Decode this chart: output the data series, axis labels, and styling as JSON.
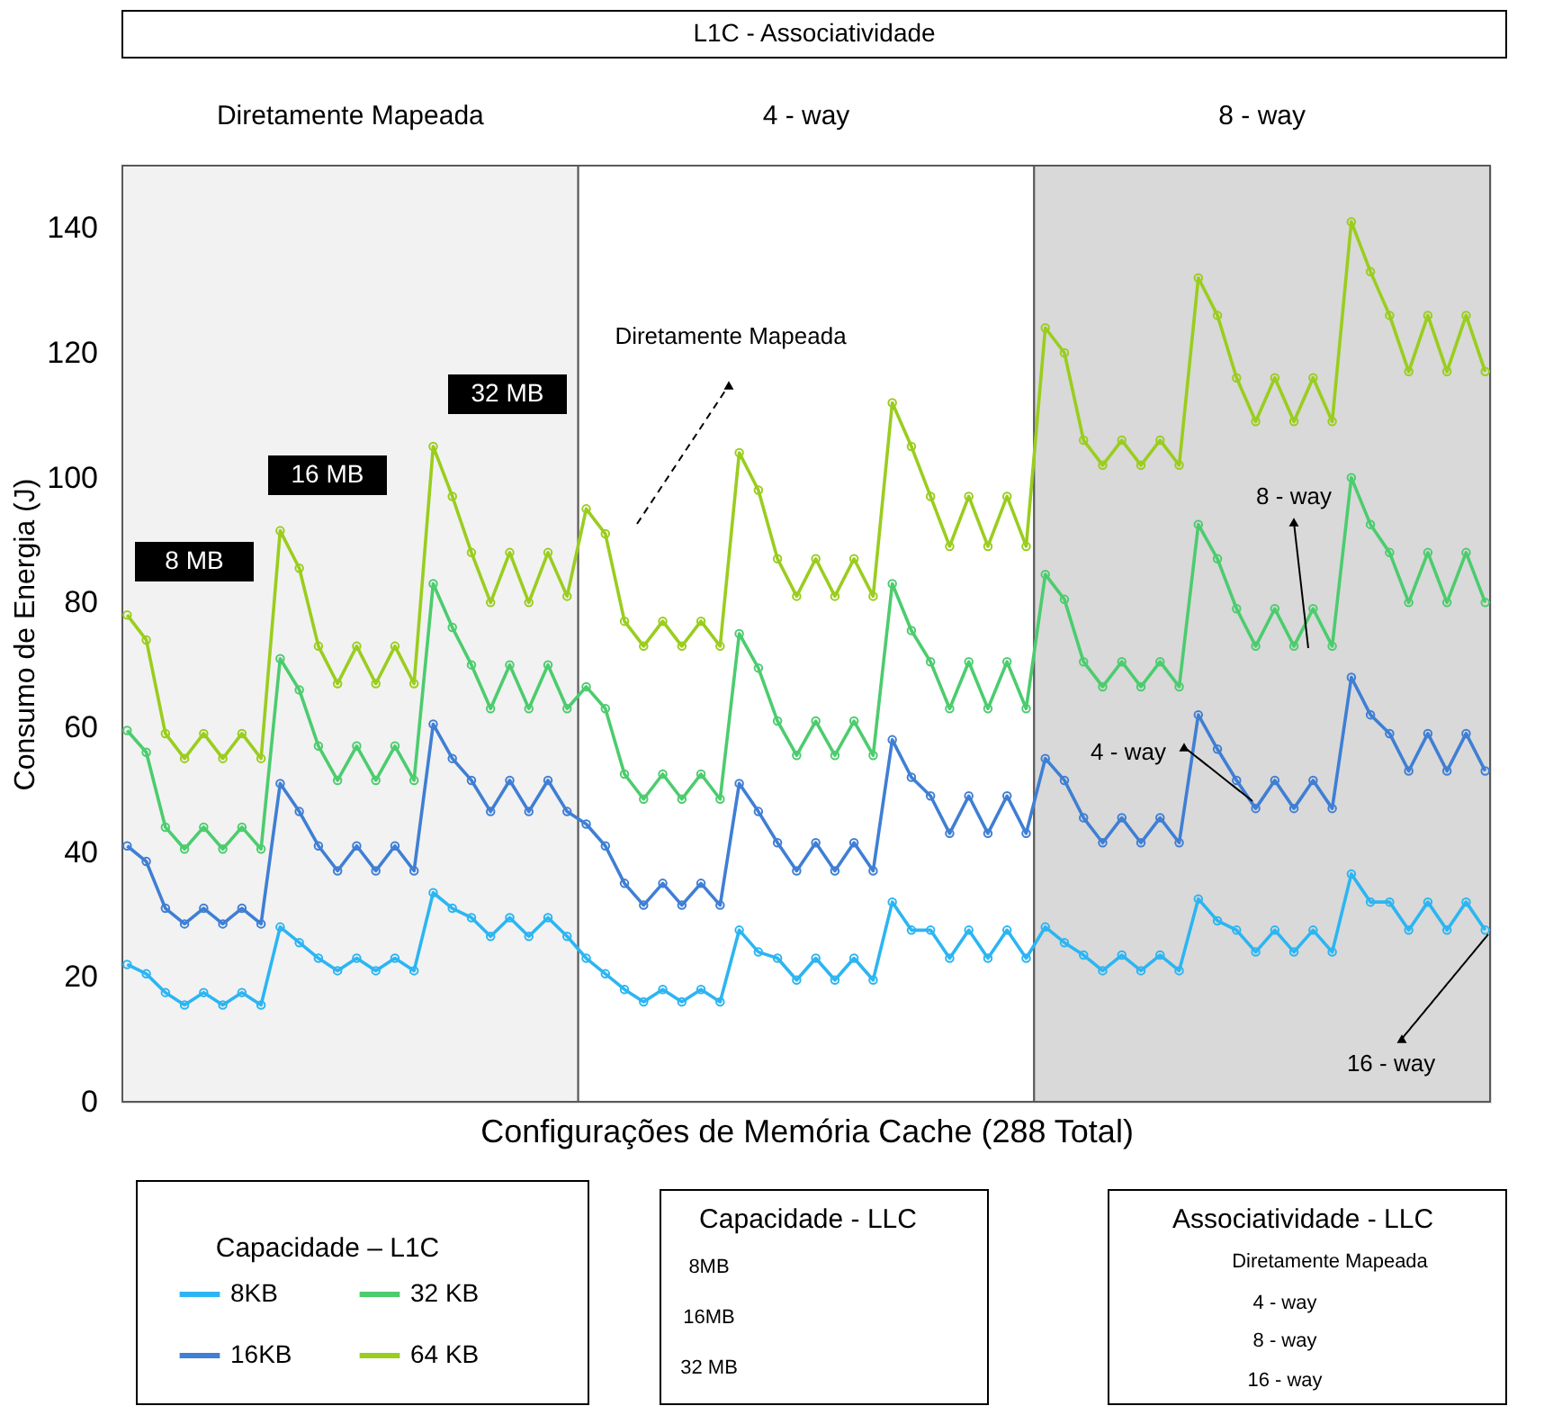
{
  "chart_data": {
    "type": "line",
    "title": "L1C - Associatividade",
    "xlabel": "Configurações de Memória Cache (288 Total)",
    "ylabel": "Consumo de Energia (J)",
    "legend_title": "Capacidade – L1C",
    "categories": [
      null,
      null,
      null,
      null,
      null,
      null,
      null,
      null,
      null,
      null,
      null,
      null,
      null,
      null,
      null,
      null,
      null,
      null,
      null,
      null,
      null,
      null,
      null,
      null,
      null,
      null,
      null,
      null,
      null,
      null,
      null,
      null,
      null,
      null,
      null,
      null,
      null,
      null,
      null,
      null,
      null,
      null,
      null,
      null,
      null,
      null,
      null,
      null,
      null,
      null,
      null,
      null,
      null,
      null,
      null,
      null,
      null,
      null,
      null,
      null,
      null,
      null,
      null,
      null,
      null,
      null,
      null,
      null,
      null,
      null,
      null,
      null
    ],
    "ylim": [
      0,
      150
    ],
    "yticks": [
      0,
      20,
      40,
      60,
      80,
      100,
      120,
      140
    ],
    "tick_labels": "y",
    "legend": "bottom",
    "marker": "circle",
    "line_style": "solid",
    "series": [
      {
        "name": "8KB",
        "color": "#2cb5f2",
        "values": [
          22,
          20.5,
          17.5,
          15.5,
          17.5,
          15.5,
          17.5,
          15.5,
          28,
          25.5,
          23,
          21,
          23,
          21,
          23,
          21,
          33.5,
          31,
          29.5,
          26.5,
          29.5,
          26.5,
          29.5,
          26.5,
          23,
          20.5,
          18,
          16,
          18,
          16,
          18,
          16,
          27.5,
          24,
          23,
          19.5,
          23,
          19.5,
          23,
          19.5,
          32,
          27.5,
          27.5,
          23,
          27.5,
          23,
          27.5,
          23,
          28,
          25.5,
          23.5,
          21,
          23.5,
          21,
          23.5,
          21,
          32.5,
          29,
          27.5,
          24,
          27.5,
          24,
          27.5,
          24,
          36.5,
          32,
          32,
          27.5,
          32,
          27.5,
          32,
          27.5
        ]
      },
      {
        "name": "16KB",
        "color": "#3f7fd4",
        "values": [
          41,
          38.5,
          31,
          28.5,
          31,
          28.5,
          31,
          28.5,
          51,
          46.5,
          41,
          37,
          41,
          37,
          41,
          37,
          60.5,
          55,
          51.5,
          46.5,
          51.5,
          46.5,
          51.5,
          46.5,
          44.5,
          41,
          35,
          31.5,
          35,
          31.5,
          35,
          31.5,
          51,
          46.5,
          41.5,
          37,
          41.5,
          37,
          41.5,
          37,
          58,
          52,
          49,
          43,
          49,
          43,
          49,
          43,
          55,
          51.5,
          45.5,
          41.5,
          45.5,
          41.5,
          45.5,
          41.5,
          62,
          56.5,
          51.5,
          47,
          51.5,
          47,
          51.5,
          47,
          68,
          62,
          59,
          53,
          59,
          53,
          59,
          53
        ]
      },
      {
        "name": "32 KB",
        "color": "#4ccc6e",
        "values": [
          59.5,
          56,
          44,
          40.5,
          44,
          40.5,
          44,
          40.5,
          71,
          66,
          57,
          51.5,
          57,
          51.5,
          57,
          51.5,
          83,
          76,
          70,
          63,
          70,
          63,
          70,
          63,
          66.5,
          63,
          52.5,
          48.5,
          52.5,
          48.5,
          52.5,
          48.5,
          75,
          69.5,
          61,
          55.5,
          61,
          55.5,
          61,
          55.5,
          83,
          75.5,
          70.5,
          63,
          70.5,
          63,
          70.5,
          63,
          84.5,
          80.5,
          70.5,
          66.5,
          70.5,
          66.5,
          70.5,
          66.5,
          92.5,
          87,
          79,
          73,
          79,
          73,
          79,
          73,
          100,
          92.5,
          88,
          80,
          88,
          80,
          88,
          80
        ]
      },
      {
        "name": "64 KB",
        "color": "#9acd1e",
        "values": [
          78,
          74,
          59,
          55,
          59,
          55,
          59,
          55,
          91.5,
          85.5,
          73,
          67,
          73,
          67,
          73,
          67,
          105,
          97,
          88,
          80,
          88,
          80,
          88,
          81,
          95,
          91,
          77,
          73,
          77,
          73,
          77,
          73,
          104,
          98,
          87,
          81,
          87,
          81,
          87,
          81,
          112,
          105,
          97,
          89,
          97,
          89,
          97,
          89,
          124,
          120,
          106,
          102,
          106,
          102,
          106,
          102,
          132,
          126,
          116,
          109,
          116,
          109,
          116,
          109,
          141,
          133,
          126,
          117,
          126,
          117,
          126,
          117
        ]
      }
    ],
    "annotations": [
      "Diretamente Mapeada",
      "4 - way",
      "8 - way",
      "8 MB",
      "16 MB",
      "32 MB",
      "Diretamente Mapeada",
      "8 - way",
      "4 - way",
      "16 - way",
      "Capacidade - LLC",
      "8MB",
      "16MB",
      "32 MB",
      "Associatividade - LLC",
      "Diretamente Mapeada",
      "4 - way",
      "8 - way",
      "16 - way"
    ]
  }
}
